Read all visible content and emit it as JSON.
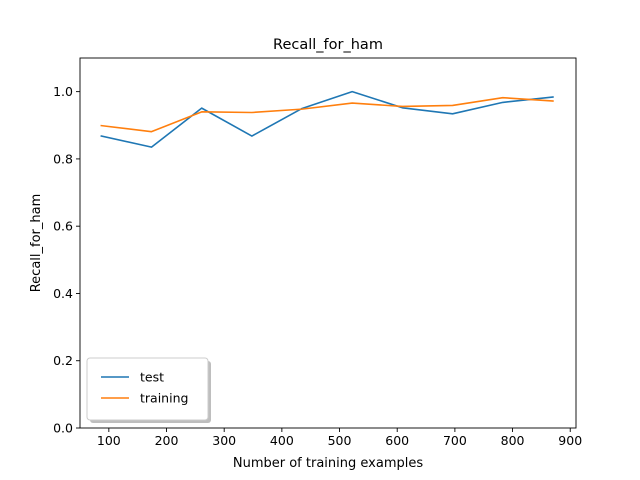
{
  "chart_data": {
    "type": "line",
    "title": "Recall_for_ham",
    "xlabel": "Number of training examples",
    "ylabel": "Recall_for_ham",
    "xlim": [
      50,
      910
    ],
    "ylim": [
      0.0,
      1.1
    ],
    "xticks": [
      100,
      200,
      300,
      400,
      500,
      600,
      700,
      800,
      900
    ],
    "yticks": [
      0.0,
      0.2,
      0.4,
      0.6,
      0.8,
      1.0
    ],
    "x": [
      87,
      174,
      261,
      348,
      435,
      522,
      609,
      696,
      783,
      870
    ],
    "series": [
      {
        "name": "test",
        "color": "#1f77b4",
        "values": [
          0.868,
          0.835,
          0.951,
          0.868,
          0.95,
          1.0,
          0.952,
          0.934,
          0.968,
          0.984
        ]
      },
      {
        "name": "training",
        "color": "#ff7f0e",
        "values": [
          0.899,
          0.881,
          0.94,
          0.938,
          0.948,
          0.966,
          0.956,
          0.959,
          0.982,
          0.972
        ]
      }
    ],
    "legend_position": "lower-left",
    "grid": false
  }
}
